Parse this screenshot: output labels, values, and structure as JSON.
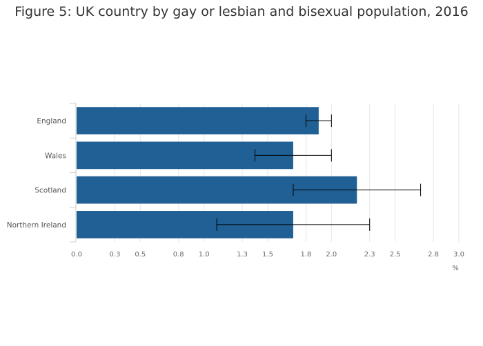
{
  "chart_data": {
    "type": "bar",
    "orientation": "horizontal",
    "title": "Figure 5: UK country by gay or lesbian and bisexual population, 2016",
    "xlabel": "%",
    "ylabel": "",
    "categories": [
      "England",
      "Wales",
      "Scotland",
      "Northern Ireland"
    ],
    "values": [
      1.9,
      1.7,
      2.2,
      1.7
    ],
    "error_low": [
      1.8,
      1.4,
      1.7,
      1.1
    ],
    "error_high": [
      2.0,
      2.0,
      2.7,
      2.3
    ],
    "xlim": [
      0,
      3.0
    ],
    "x_ticks": [
      "0.0",
      "0.3",
      "0.5",
      "0.8",
      "1.0",
      "1.3",
      "1.5",
      "1.8",
      "2.0",
      "2.3",
      "2.5",
      "2.8",
      "3.0"
    ],
    "grid": true,
    "bar_color": "#206095",
    "error_bar_color": "#000000"
  }
}
